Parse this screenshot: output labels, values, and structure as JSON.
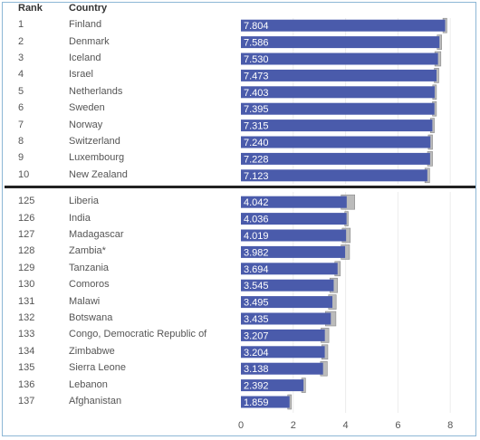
{
  "headers": {
    "rank": "Rank",
    "country": "Country"
  },
  "chart_data": {
    "type": "bar",
    "orientation": "horizontal",
    "xlim": [
      0,
      8.5
    ],
    "xticks": [
      "0",
      "2",
      "4",
      "6",
      "8"
    ],
    "grid": true,
    "bar_color": "#4a5bab",
    "ci_color": "#bbbbbb",
    "groups": [
      {
        "name": "top",
        "rows": [
          {
            "rank": "1",
            "country": "Finland",
            "value": 7.804,
            "label": "7.804",
            "ci": [
              7.72,
              7.87
            ]
          },
          {
            "rank": "2",
            "country": "Denmark",
            "value": 7.586,
            "label": "7.586",
            "ci": [
              7.5,
              7.67
            ]
          },
          {
            "rank": "3",
            "country": "Iceland",
            "value": 7.53,
            "label": "7.530",
            "ci": [
              7.41,
              7.64
            ]
          },
          {
            "rank": "4",
            "country": "Israel",
            "value": 7.473,
            "label": "7.473",
            "ci": [
              7.39,
              7.56
            ]
          },
          {
            "rank": "5",
            "country": "Netherlands",
            "value": 7.403,
            "label": "7.403",
            "ci": [
              7.33,
              7.47
            ]
          },
          {
            "rank": "6",
            "country": "Sweden",
            "value": 7.395,
            "label": "7.395",
            "ci": [
              7.32,
              7.47
            ]
          },
          {
            "rank": "7",
            "country": "Norway",
            "value": 7.315,
            "label": "7.315",
            "ci": [
              7.24,
              7.39
            ]
          },
          {
            "rank": "8",
            "country": "Switzerland",
            "value": 7.24,
            "label": "7.240",
            "ci": [
              7.16,
              7.32
            ]
          },
          {
            "rank": "9",
            "country": "Luxembourg",
            "value": 7.228,
            "label": "7.228",
            "ci": [
              7.13,
              7.32
            ]
          },
          {
            "rank": "10",
            "country": "New Zealand",
            "value": 7.123,
            "label": "7.123",
            "ci": [
              7.03,
              7.21
            ]
          }
        ]
      },
      {
        "name": "bottom",
        "rows": [
          {
            "rank": "125",
            "country": "Liberia",
            "value": 4.042,
            "label": "4.042",
            "ci": [
              3.83,
              4.35
            ]
          },
          {
            "rank": "126",
            "country": "India",
            "value": 4.036,
            "label": "4.036",
            "ci": [
              3.97,
              4.1
            ]
          },
          {
            "rank": "127",
            "country": "Madagascar",
            "value": 4.019,
            "label": "4.019",
            "ci": [
              3.87,
              4.18
            ]
          },
          {
            "rank": "128",
            "country": "Zambia*",
            "value": 3.982,
            "label": "3.982",
            "ci": [
              3.83,
              4.15
            ]
          },
          {
            "rank": "129",
            "country": "Tanzania",
            "value": 3.694,
            "label": "3.694",
            "ci": [
              3.59,
              3.8
            ]
          },
          {
            "rank": "130",
            "country": "Comoros",
            "value": 3.545,
            "label": "3.545",
            "ci": [
              3.4,
              3.69
            ]
          },
          {
            "rank": "131",
            "country": "Malawi",
            "value": 3.495,
            "label": "3.495",
            "ci": [
              3.35,
              3.64
            ]
          },
          {
            "rank": "132",
            "country": "Botswana",
            "value": 3.435,
            "label": "3.435",
            "ci": [
              3.23,
              3.63
            ]
          },
          {
            "rank": "133",
            "country": "Congo, Democratic Republic of",
            "value": 3.207,
            "label": "3.207",
            "ci": [
              3.06,
              3.36
            ]
          },
          {
            "rank": "134",
            "country": "Zimbabwe",
            "value": 3.204,
            "label": "3.204",
            "ci": [
              3.09,
              3.32
            ]
          },
          {
            "rank": "135",
            "country": "Sierra Leone",
            "value": 3.138,
            "label": "3.138",
            "ci": [
              3.04,
              3.3
            ]
          },
          {
            "rank": "136",
            "country": "Lebanon",
            "value": 2.392,
            "label": "2.392",
            "ci": [
              2.32,
              2.47
            ]
          },
          {
            "rank": "137",
            "country": "Afghanistan",
            "value": 1.859,
            "label": "1.859",
            "ci": [
              1.79,
              1.93
            ]
          }
        ]
      }
    ]
  }
}
